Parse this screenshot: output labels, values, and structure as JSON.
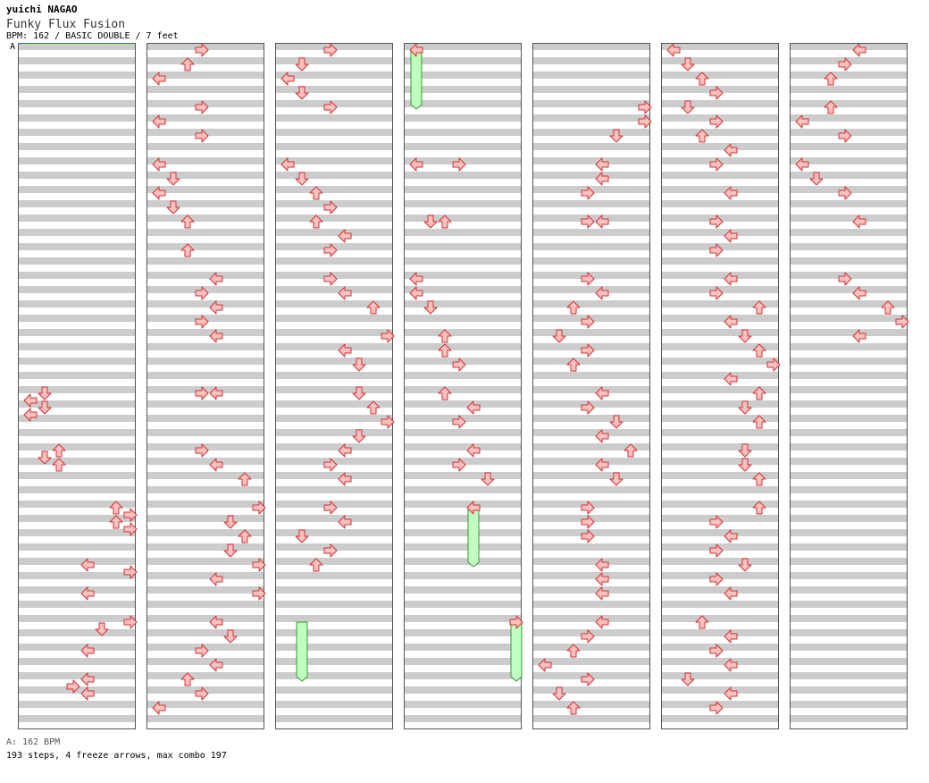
{
  "header": {
    "artist": "yuichi NAGAO",
    "title": "Funky Flux Fusion",
    "info": "BPM: 162 / BASIC DOUBLE / 7 feet"
  },
  "marker_label": "A",
  "footer": {
    "bpm_line": "A: 162 BPM",
    "stats_line": "193 steps, 4 freeze arrows, max combo 197"
  },
  "colors": {
    "stripe_gray": "#cccccc",
    "arrow_fill": "#ffc0c0",
    "arrow_stroke": "#cc3333",
    "freeze_fill": "#c0ffc0",
    "freeze_stroke": "#339933",
    "bpm_line": "#3366cc"
  },
  "chart_data": {
    "type": "step-chart",
    "style": "DOUBLE",
    "lanes": [
      "P1-left",
      "P1-down",
      "P1-up",
      "P1-right",
      "P2-left",
      "P2-down",
      "P2-up",
      "P2-right"
    ],
    "rows_per_measure": 8,
    "measures_per_column": 12,
    "columns": 7,
    "notes": [
      [
        1,
        4,
        0
      ],
      [
        1,
        5,
        3
      ],
      [
        1,
        6,
        2
      ],
      [
        1,
        7,
        0
      ],
      [
        1,
        8,
        3
      ],
      [
        1,
        9,
        2
      ],
      [
        1,
        10,
        3
      ],
      [
        1,
        11,
        0
      ],
      [
        2,
        4,
        3
      ],
      [
        2,
        5,
        1
      ],
      [
        2,
        6,
        3
      ],
      [
        2,
        7,
        0
      ],
      [
        2,
        8,
        1
      ],
      [
        2,
        9,
        2
      ],
      [
        2,
        10,
        1
      ],
      [
        2,
        11,
        0
      ],
      [
        3,
        3,
        2
      ],
      [
        3,
        4,
        0
      ],
      [
        3,
        5,
        3
      ],
      [
        3,
        6,
        2
      ],
      [
        3,
        7,
        3
      ],
      [
        3,
        8,
        1
      ],
      [
        3,
        9,
        3
      ],
      [
        3,
        10,
        0
      ],
      [
        3,
        11,
        1
      ],
      [
        3,
        12,
        2
      ],
      [
        3,
        13,
        3
      ],
      [
        3,
        14,
        1
      ],
      [
        3,
        15,
        3
      ],
      [
        4,
        0,
        3
      ],
      [
        4,
        2,
        0
      ],
      [
        4,
        5,
        3
      ],
      [
        4,
        6,
        1
      ],
      [
        4,
        7,
        1
      ],
      [
        4,
        8,
        2
      ],
      [
        4,
        9,
        3
      ],
      [
        4,
        10,
        0
      ],
      [
        5,
        0,
        0
      ],
      [
        5,
        1,
        3
      ],
      [
        5,
        2,
        2
      ],
      [
        5,
        3,
        3
      ],
      [
        5,
        4,
        1
      ],
      [
        5,
        6,
        2
      ],
      [
        5,
        7,
        2
      ],
      [
        5,
        8,
        0
      ],
      [
        5,
        9,
        3
      ],
      [
        5,
        10,
        3
      ],
      [
        5,
        11,
        0
      ],
      [
        6,
        0,
        3
      ],
      [
        6,
        1,
        1
      ],
      [
        6,
        2,
        2
      ],
      [
        6,
        3,
        2
      ],
      [
        6,
        4,
        3
      ],
      [
        6,
        6,
        3
      ],
      [
        6,
        7,
        2
      ],
      [
        6,
        8,
        1
      ],
      [
        6,
        9,
        2
      ],
      [
        6,
        10,
        0
      ],
      [
        6,
        11,
        1
      ],
      [
        7,
        0,
        0
      ],
      [
        7,
        1,
        1
      ],
      [
        7,
        2,
        0
      ],
      [
        7,
        3,
        1
      ],
      [
        7,
        4,
        2
      ],
      [
        7,
        5,
        2
      ],
      [
        7,
        6,
        0
      ],
      [
        7,
        7,
        3
      ],
      [
        7,
        8,
        1
      ],
      [
        7,
        9,
        0
      ],
      [
        7,
        10,
        1
      ],
      [
        8,
        0,
        1
      ],
      [
        8,
        2,
        3
      ],
      [
        8,
        3,
        3
      ],
      [
        8,
        5,
        0
      ],
      [
        8,
        6,
        1
      ],
      [
        8,
        7,
        0
      ],
      [
        8,
        8,
        2
      ],
      [
        8,
        9,
        3
      ],
      [
        8,
        10,
        0
      ],
      [
        8,
        11,
        2
      ],
      [
        9,
        0,
        3
      ],
      [
        9,
        2,
        0
      ],
      [
        9,
        3,
        1
      ],
      [
        9,
        4,
        2
      ],
      [
        9,
        5,
        3
      ],
      [
        9,
        6,
        2
      ],
      [
        9,
        7,
        0
      ],
      [
        9,
        8,
        1
      ],
      [
        9,
        9,
        3
      ],
      [
        9,
        10,
        0
      ],
      [
        9,
        11,
        3
      ],
      [
        10,
        0,
        0
      ],
      [
        10,
        1,
        3
      ],
      [
        10,
        2,
        2
      ],
      [
        10,
        3,
        2
      ],
      [
        10,
        4,
        0
      ],
      [
        10,
        5,
        3
      ],
      [
        10,
        6,
        0
      ],
      [
        10,
        7,
        1
      ],
      [
        10,
        8,
        3
      ],
      [
        10,
        9,
        2
      ],
      [
        10,
        10,
        1
      ],
      [
        10,
        11,
        2
      ],
      [
        11,
        0,
        2
      ],
      [
        11,
        1,
        0
      ],
      [
        11,
        2,
        2
      ],
      [
        11,
        3,
        0
      ],
      [
        11,
        4,
        1
      ],
      [
        11,
        5,
        3
      ],
      [
        11,
        6,
        1
      ],
      [
        11,
        7,
        2
      ],
      [
        11,
        8,
        3
      ],
      [
        11,
        9,
        0
      ],
      [
        11,
        10,
        1
      ],
      [
        11,
        11,
        0
      ],
      [
        12,
        0,
        1
      ],
      [
        12,
        1,
        3
      ],
      [
        12,
        2,
        1
      ],
      [
        12,
        3,
        2
      ],
      [
        12,
        4,
        1
      ],
      [
        12,
        5,
        2
      ],
      [
        12,
        6,
        1
      ],
      [
        12,
        7,
        3
      ],
      [
        12,
        8,
        0
      ],
      [
        12,
        9,
        3
      ],
      [
        12,
        10,
        3
      ],
      [
        12,
        11,
        0
      ],
      [
        13,
        0,
        2
      ],
      [
        13,
        1,
        3
      ],
      [
        13,
        2,
        2
      ],
      [
        13,
        3,
        3
      ],
      [
        13,
        4,
        0
      ],
      [
        13,
        6,
        0
      ],
      [
        13,
        7,
        1
      ],
      [
        13,
        8,
        1
      ],
      [
        13,
        9,
        2
      ],
      [
        13,
        10,
        0
      ],
      [
        13,
        11,
        3
      ],
      [
        14,
        0,
        2
      ],
      [
        14,
        1,
        1
      ],
      [
        14,
        2,
        2
      ],
      [
        14,
        3,
        1
      ],
      [
        14,
        4,
        3
      ],
      [
        14,
        5,
        0
      ],
      [
        14,
        7,
        1
      ],
      [
        14,
        8,
        0
      ],
      [
        14,
        9,
        1
      ],
      [
        14,
        10,
        3
      ],
      [
        14,
        11,
        2
      ],
      [
        15,
        0,
        3
      ],
      [
        15,
        1,
        3
      ],
      [
        15,
        3,
        3
      ],
      [
        15,
        4,
        2
      ],
      [
        15,
        5,
        3
      ],
      [
        15,
        6,
        2
      ],
      [
        15,
        7,
        1
      ],
      [
        15,
        8,
        2
      ],
      [
        15,
        9,
        0
      ],
      [
        15,
        10,
        1
      ],
      [
        16,
        0,
        1
      ],
      [
        16,
        1,
        3
      ],
      [
        16,
        2,
        0
      ],
      [
        16,
        3,
        3
      ],
      [
        16,
        4,
        0
      ],
      [
        16,
        5,
        1
      ],
      [
        16,
        6,
        3
      ],
      [
        16,
        7,
        2
      ],
      [
        16,
        8,
        2
      ],
      [
        16,
        9,
        3
      ],
      [
        17,
        0,
        2
      ],
      [
        17,
        1,
        0
      ],
      [
        17,
        2,
        2
      ],
      [
        17,
        3,
        1
      ],
      [
        17,
        4,
        3
      ],
      [
        17,
        5,
        0
      ],
      [
        17,
        6,
        0
      ]
    ],
    "freezes": [
      [
        3,
        0,
        8
      ],
      [
        9,
        2,
        2
      ],
      [
        9,
        8,
        10
      ],
      [
        11,
        6,
        14
      ]
    ]
  }
}
